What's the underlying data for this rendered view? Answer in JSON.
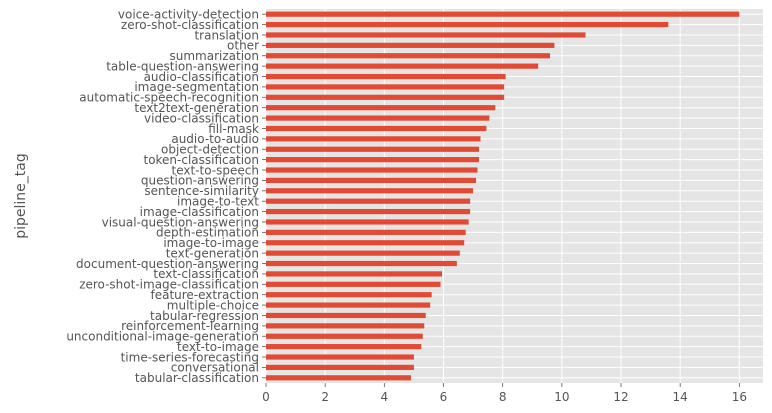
{
  "chart_data": {
    "type": "bar",
    "orientation": "horizontal",
    "style": "ggplot",
    "grid": true,
    "ylabel": "pipeline_tag",
    "xlabel": "",
    "xlim": [
      0,
      16.8
    ],
    "x_ticks": [
      0,
      2,
      4,
      6,
      8,
      10,
      12,
      14,
      16
    ],
    "bar_color": "#E24A33",
    "background_color": "#E5E5E5",
    "grid_color": "#FFFFFF",
    "categories": [
      "voice-activity-detection",
      "zero-shot-classification",
      "translation",
      "other",
      "summarization",
      "table-question-answering",
      "audio-classification",
      "image-segmentation",
      "automatic-speech-recognition",
      "text2text-generation",
      "video-classification",
      "fill-mask",
      "audio-to-audio",
      "object-detection",
      "token-classification",
      "text-to-speech",
      "question-answering",
      "sentence-similarity",
      "image-to-text",
      "image-classification",
      "visual-question-answering",
      "depth-estimation",
      "image-to-image",
      "text-generation",
      "document-question-answering",
      "text-classification",
      "zero-shot-image-classification",
      "feature-extraction",
      "multiple-choice",
      "tabular-regression",
      "reinforcement-learning",
      "unconditional-image-generation",
      "text-to-image",
      "time-series-forecasting",
      "conversational",
      "tabular-classification"
    ],
    "values": [
      16.0,
      13.6,
      10.8,
      9.75,
      9.6,
      9.2,
      8.1,
      8.05,
      8.05,
      7.75,
      7.55,
      7.45,
      7.25,
      7.2,
      7.2,
      7.15,
      7.1,
      7.0,
      6.9,
      6.9,
      6.85,
      6.75,
      6.7,
      6.55,
      6.45,
      5.95,
      5.9,
      5.6,
      5.55,
      5.4,
      5.35,
      5.3,
      5.25,
      5.0,
      5.0,
      4.9
    ]
  }
}
